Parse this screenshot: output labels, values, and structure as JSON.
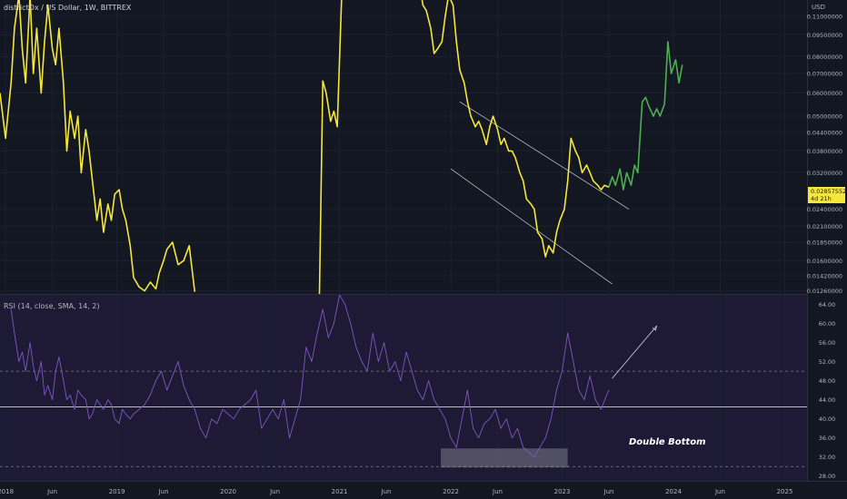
{
  "header": {
    "title": "districtOx / US Dollar, 1W, BITTREX",
    "currency": "USD"
  },
  "rsi_header": {
    "title": "RSI (14, close, SMA, 14, 2)"
  },
  "last_price": {
    "value": "0.02857552",
    "countdown": "4d 21h"
  },
  "annotation": "Double Bottom",
  "colors": {
    "background": "#131722",
    "price_line": "#f5e63a",
    "projection": "#4caf50",
    "rsi_line": "#7e57c2",
    "rsi_band": "#1e1a35",
    "channel": "#c8c8c8",
    "badge": "#f5e63a"
  },
  "chart_data": [
    {
      "type": "line",
      "scale": "log",
      "ylim": [
        0.0123,
        0.125
      ],
      "y_ticks": [
        "0.11000000",
        "0.09500000",
        "0.08000000",
        "0.07000000",
        "0.06000000",
        "0.05000000",
        "0.04400000",
        "0.03800000",
        "0.03200000",
        "0.02400000",
        "0.02100000",
        "0.01850000",
        "0.01600000",
        "0.01420000",
        "0.01260000"
      ],
      "y_tick_values": [
        0.11,
        0.095,
        0.08,
        0.07,
        0.06,
        0.05,
        0.044,
        0.038,
        0.032,
        0.024,
        0.021,
        0.0185,
        0.016,
        0.0142,
        0.0126
      ],
      "x_ticks": [
        "2018",
        "Jun",
        "2019",
        "Jun",
        "2020",
        "Jun",
        "2021",
        "Jun",
        "2022",
        "Jun",
        "2023",
        "Jun",
        "2024",
        "Jun",
        "2025"
      ],
      "x_tick_values": [
        2018.0,
        2018.42,
        2019.0,
        2019.42,
        2020.0,
        2020.42,
        2021.0,
        2021.42,
        2022.0,
        2022.42,
        2023.0,
        2023.42,
        2024.0,
        2024.42,
        2025.0
      ],
      "xlim": [
        2017.95,
        2025.2
      ],
      "series": [
        {
          "style": "price",
          "x": [
            2017.95,
            2018.0,
            2018.05,
            2018.08,
            2018.12,
            2018.15,
            2018.18,
            2018.22,
            2018.25,
            2018.28,
            2018.32,
            2018.35,
            2018.38,
            2018.42,
            2018.45,
            2018.48,
            2018.52,
            2018.55,
            2018.58,
            2018.62,
            2018.65,
            2018.68,
            2018.72,
            2018.75,
            2018.78,
            2018.82,
            2018.85,
            2018.88,
            2018.92,
            2018.95,
            2018.98,
            2019.02,
            2019.05,
            2019.08,
            2019.12,
            2019.15,
            2019.2,
            2019.25,
            2019.3,
            2019.35,
            2019.38,
            2019.42,
            2019.45,
            2019.5,
            2019.55,
            2019.6,
            2019.65,
            2019.7
          ],
          "y": [
            0.06,
            0.042,
            0.065,
            0.1,
            0.13,
            0.085,
            0.065,
            0.13,
            0.07,
            0.1,
            0.06,
            0.09,
            0.12,
            0.085,
            0.075,
            0.1,
            0.065,
            0.038,
            0.052,
            0.042,
            0.05,
            0.032,
            0.045,
            0.038,
            0.03,
            0.022,
            0.026,
            0.02,
            0.025,
            0.022,
            0.027,
            0.028,
            0.024,
            0.022,
            0.018,
            0.014,
            0.013,
            0.0126,
            0.0135,
            0.0128,
            0.0145,
            0.016,
            0.0175,
            0.0185,
            0.0155,
            0.016,
            0.018,
            0.0125
          ]
        },
        {
          "style": "price",
          "x": [
            2020.82,
            2020.85,
            2020.88,
            2020.92,
            2020.95,
            2020.98,
            2021.02,
            2021.05,
            2021.08,
            2021.12,
            2021.15,
            2021.18,
            2021.22,
            2021.25,
            2021.28,
            2021.32,
            2021.35,
            2021.38,
            2021.42,
            2021.45,
            2021.48,
            2021.52,
            2021.55,
            2021.58,
            2021.62,
            2021.65,
            2021.68,
            2021.72,
            2021.75,
            2021.78,
            2021.82,
            2021.85,
            2021.88,
            2021.92,
            2021.95,
            2021.98,
            2022.02,
            2022.05,
            2022.08,
            2022.12,
            2022.15,
            2022.18,
            2022.22,
            2022.25,
            2022.28,
            2022.32,
            2022.35,
            2022.38,
            2022.42,
            2022.45,
            2022.48,
            2022.52,
            2022.55,
            2022.58,
            2022.62,
            2022.65,
            2022.68,
            2022.72,
            2022.75,
            2022.78,
            2022.82,
            2022.85,
            2022.88,
            2022.92,
            2022.95,
            2022.98,
            2023.02,
            2023.05,
            2023.08,
            2023.12,
            2023.15,
            2023.18,
            2023.22,
            2023.25,
            2023.28,
            2023.32,
            2023.35,
            2023.38,
            2023.42
          ],
          "y": [
            0.0123,
            0.066,
            0.06,
            0.048,
            0.052,
            0.046,
            0.13,
            0.135,
            0.14,
            0.13,
            0.13,
            0.15,
            0.14,
            0.15,
            0.13,
            0.14,
            0.145,
            0.13,
            0.14,
            0.135,
            0.14,
            0.135,
            0.14,
            0.13,
            0.135,
            0.14,
            0.135,
            0.14,
            0.12,
            0.115,
            0.1,
            0.082,
            0.085,
            0.09,
            0.11,
            0.13,
            0.12,
            0.09,
            0.072,
            0.065,
            0.056,
            0.05,
            0.046,
            0.048,
            0.045,
            0.04,
            0.046,
            0.05,
            0.045,
            0.04,
            0.042,
            0.038,
            0.038,
            0.036,
            0.032,
            0.03,
            0.026,
            0.025,
            0.024,
            0.02,
            0.019,
            0.0165,
            0.018,
            0.017,
            0.02,
            0.022,
            0.024,
            0.03,
            0.042,
            0.038,
            0.036,
            0.032,
            0.034,
            0.032,
            0.03,
            0.029,
            0.028,
            0.029,
            0.02857
          ]
        },
        {
          "style": "projection",
          "x": [
            2023.42,
            2023.45,
            2023.48,
            2023.52,
            2023.55,
            2023.58,
            2023.62,
            2023.65,
            2023.68,
            2023.72,
            2023.75,
            2023.78,
            2023.82,
            2023.85,
            2023.88,
            2023.92,
            2023.95,
            2023.98,
            2024.02,
            2024.05,
            2024.08
          ],
          "y": [
            0.02857,
            0.031,
            0.029,
            0.033,
            0.028,
            0.032,
            0.029,
            0.034,
            0.032,
            0.056,
            0.058,
            0.054,
            0.05,
            0.053,
            0.05,
            0.055,
            0.09,
            0.07,
            0.078,
            0.065,
            0.075
          ]
        }
      ],
      "channel": [
        {
          "x": [
            2022.08,
            2023.6
          ],
          "y": [
            0.056,
            0.024
          ]
        },
        {
          "x": [
            2022.0,
            2023.45
          ],
          "y": [
            0.033,
            0.0133
          ]
        }
      ]
    },
    {
      "type": "line",
      "ylim": [
        27,
        66
      ],
      "y_ticks": [
        "64.00",
        "60.00",
        "56.00",
        "52.00",
        "48.00",
        "44.00",
        "40.00",
        "36.00",
        "32.00",
        "28.00"
      ],
      "y_tick_values": [
        64,
        60,
        56,
        52,
        48,
        44,
        40,
        36,
        32,
        28
      ],
      "levels": {
        "upper_dashed": 50,
        "middle": 42.5,
        "lower_dashed": 30
      },
      "series": [
        {
          "style": "rsi",
          "x": [
            2018.05,
            2018.08,
            2018.12,
            2018.15,
            2018.18,
            2018.22,
            2018.25,
            2018.28,
            2018.32,
            2018.35,
            2018.38,
            2018.42,
            2018.45,
            2018.48,
            2018.52,
            2018.55,
            2018.58,
            2018.62,
            2018.65,
            2018.68,
            2018.72,
            2018.75,
            2018.78,
            2018.82,
            2018.85,
            2018.88,
            2018.92,
            2018.95,
            2018.98,
            2019.02,
            2019.05,
            2019.08,
            2019.12,
            2019.15,
            2019.2,
            2019.25,
            2019.3,
            2019.35,
            2019.4,
            2019.45,
            2019.5,
            2019.55,
            2019.6,
            2019.65,
            2019.7,
            2019.75,
            2019.8,
            2019.85,
            2019.9,
            2019.95,
            2020.0,
            2020.05,
            2020.1,
            2020.15,
            2020.2,
            2020.25,
            2020.3,
            2020.35,
            2020.4,
            2020.45,
            2020.5,
            2020.55,
            2020.6,
            2020.65,
            2020.7,
            2020.75,
            2020.8,
            2020.85,
            2020.9,
            2020.95,
            2021.0,
            2021.05,
            2021.1,
            2021.15,
            2021.2,
            2021.25,
            2021.3,
            2021.35,
            2021.4,
            2021.45,
            2021.5,
            2021.55,
            2021.6,
            2021.65,
            2021.7,
            2021.75,
            2021.8,
            2021.85,
            2021.9,
            2021.95,
            2022.0,
            2022.05,
            2022.1,
            2022.15,
            2022.2,
            2022.25,
            2022.3,
            2022.35,
            2022.4,
            2022.45,
            2022.5,
            2022.55,
            2022.6,
            2022.65,
            2022.7,
            2022.75,
            2022.8,
            2022.85,
            2022.9,
            2022.95,
            2023.0,
            2023.05,
            2023.1,
            2023.15,
            2023.2,
            2023.25,
            2023.3,
            2023.35,
            2023.4,
            2023.42
          ],
          "y": [
            63,
            58,
            52,
            54,
            50,
            56,
            51,
            48,
            52,
            45,
            47,
            44,
            50,
            53,
            48,
            44,
            45,
            42,
            46,
            45,
            44,
            40,
            41,
            44,
            43,
            42,
            44,
            43,
            40,
            39,
            42,
            41,
            40,
            41,
            42,
            43,
            45,
            48,
            50,
            46,
            49,
            52,
            47,
            44,
            42,
            38,
            36,
            40,
            39,
            42,
            41,
            40,
            42,
            43,
            44,
            46,
            38,
            40,
            42,
            40,
            44,
            36,
            40,
            44,
            55,
            52,
            58,
            63,
            57,
            60,
            66,
            64,
            60,
            55,
            52,
            50,
            58,
            52,
            56,
            50,
            52,
            48,
            54,
            50,
            46,
            44,
            48,
            44,
            42,
            40,
            36,
            34,
            40,
            46,
            38,
            36,
            39,
            40,
            42,
            38,
            40,
            36,
            38,
            34,
            33,
            32,
            34,
            36,
            40,
            46,
            50,
            58,
            52,
            46,
            44,
            49,
            44,
            42,
            45,
            46
          ]
        }
      ],
      "arrow": {
        "x": [
          2023.45,
          2023.85
        ],
        "y": [
          48.5,
          59.5
        ]
      },
      "highlight": {
        "x": [
          2021.91,
          2023.05
        ],
        "y": [
          29.8,
          33.8
        ]
      }
    }
  ]
}
